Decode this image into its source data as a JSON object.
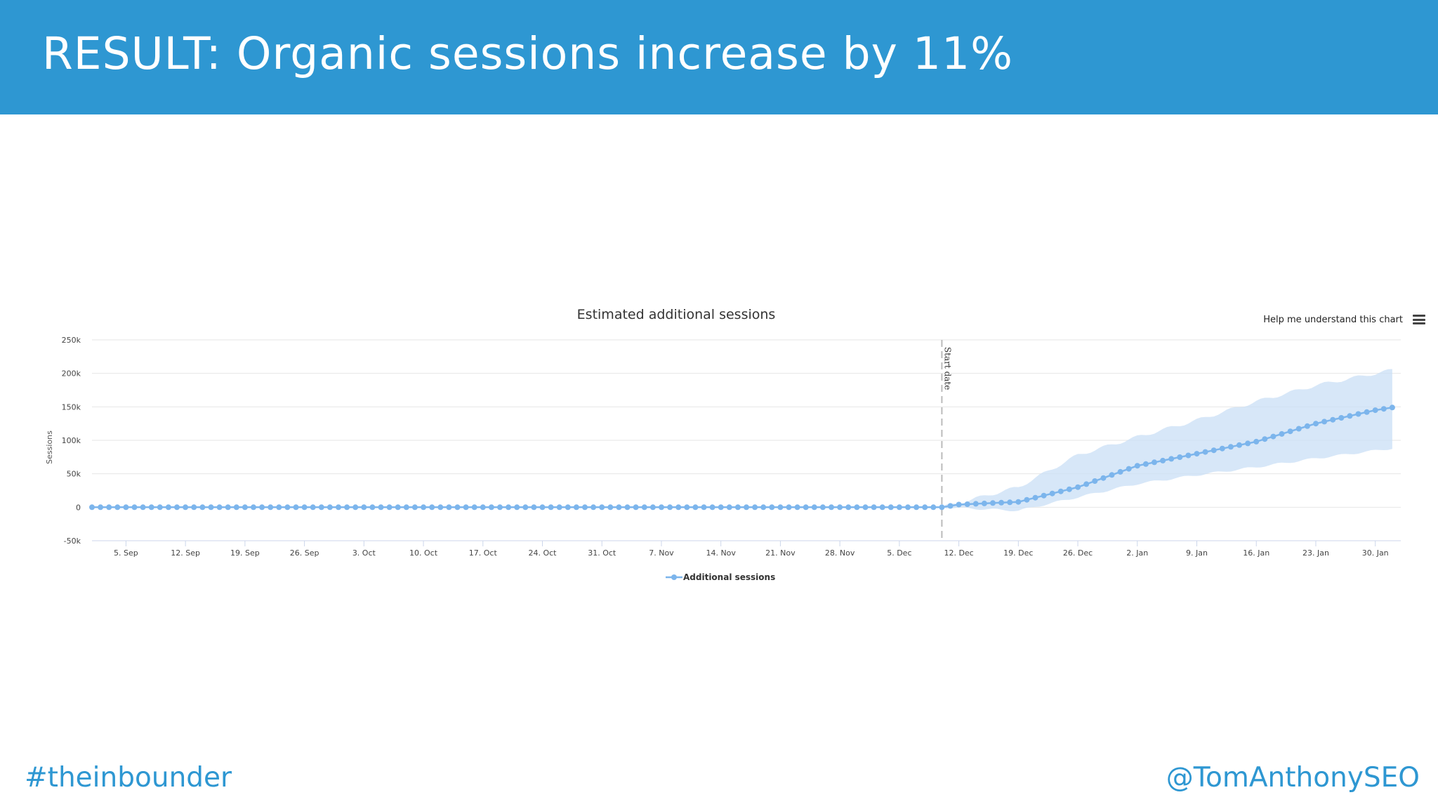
{
  "slide": {
    "title": "RESULT: Organic sessions increase by 11%",
    "hashtag": "#theinbounder",
    "handle": "@TomAnthonySEO",
    "header_color": "#2e97d2"
  },
  "toolbar": {
    "help_label": "Help me understand this chart",
    "menu_icon": "hamburger-menu-icon"
  },
  "chart_data": {
    "type": "line",
    "title": "Estimated additional sessions",
    "ylabel": "Sessions",
    "xlabel": "",
    "ylim": [
      -50000,
      250000
    ],
    "yticks": [
      -50000,
      0,
      50000,
      100000,
      150000,
      200000,
      250000
    ],
    "ytick_labels": [
      "-50k",
      "0",
      "50k",
      "100k",
      "150k",
      "200k",
      "250k"
    ],
    "x_start_date": "1 Sep",
    "xtick_labels": [
      "5. Sep",
      "12. Sep",
      "19. Sep",
      "26. Sep",
      "3. Oct",
      "10. Oct",
      "17. Oct",
      "24. Oct",
      "31. Oct",
      "7. Nov",
      "14. Nov",
      "21. Nov",
      "28. Nov",
      "5. Dec",
      "12. Dec",
      "19. Dec",
      "26. Dec",
      "2. Jan",
      "9. Jan",
      "16. Jan",
      "23. Jan",
      "30. Jan"
    ],
    "xtick_days": [
      4,
      11,
      18,
      25,
      32,
      39,
      46,
      53,
      60,
      67,
      74,
      81,
      88,
      95,
      102,
      109,
      116,
      123,
      130,
      137,
      144,
      151
    ],
    "grid": true,
    "legend_position": "bottom-center",
    "start_date_marker": {
      "label": "Start date",
      "date": "10 Dec"
    },
    "series": [
      {
        "name": "Additional sessions",
        "color": "#7cb5ec",
        "pre_period_value": 0,
        "post_period_anchors": [
          {
            "date": "10 Dec",
            "value": 0
          },
          {
            "date": "12 Dec",
            "value": 4000
          },
          {
            "date": "19 Dec",
            "value": 8000
          },
          {
            "date": "26 Dec",
            "value": 30000
          },
          {
            "date": "2 Jan",
            "value": 62000
          },
          {
            "date": "9 Jan",
            "value": 80000
          },
          {
            "date": "16 Jan",
            "value": 98000
          },
          {
            "date": "23 Jan",
            "value": 125000
          },
          {
            "date": "30 Jan",
            "value": 145000
          },
          {
            "date": "1 Feb",
            "value": 149000
          }
        ]
      }
    ],
    "confidence_band": {
      "color": "#c9dff5",
      "anchors": [
        {
          "date": "10 Dec",
          "low": 0,
          "high": 0
        },
        {
          "date": "19 Dec",
          "low": -5000,
          "high": 30000
        },
        {
          "date": "26 Dec",
          "low": 15000,
          "high": 78000
        },
        {
          "date": "2 Jan",
          "low": 35000,
          "high": 105000
        },
        {
          "date": "9 Jan",
          "low": 48000,
          "high": 130000
        },
        {
          "date": "16 Jan",
          "low": 60000,
          "high": 158000
        },
        {
          "date": "23 Jan",
          "low": 73000,
          "high": 182000
        },
        {
          "date": "1 Feb",
          "low": 88000,
          "high": 205000
        }
      ]
    }
  }
}
